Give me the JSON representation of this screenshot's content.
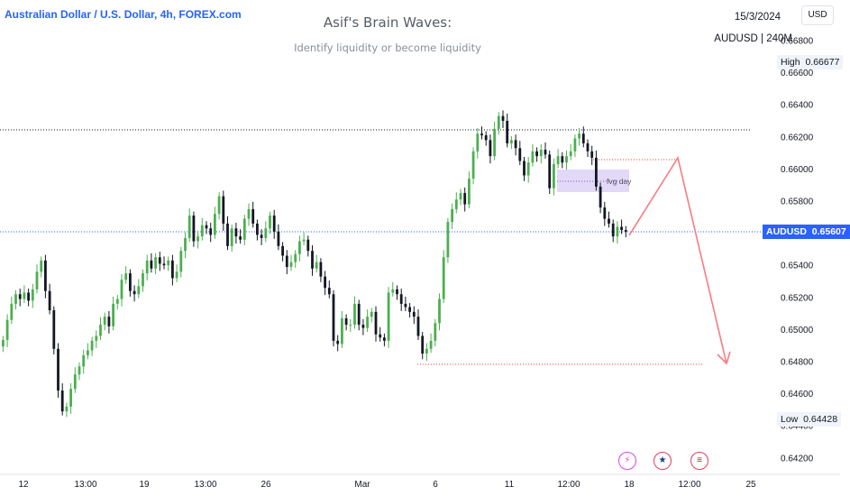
{
  "header": {
    "symbol_title": "Australian Dollar / U.S. Dollar, 4h, FOREX.com",
    "date": "15/3/2024",
    "symbol_interval": "AUDUSD | 240M",
    "currency": "USD"
  },
  "watermark": {
    "title": "Asif's Brain Waves:",
    "subtitle": "Identify liquidity or become liquidity"
  },
  "price_tags": {
    "high_label": "High",
    "high_value": "0.66677",
    "low_label": "Low",
    "low_value": "0.64428",
    "current_label": "AUDUSD",
    "current_value": "0.65607"
  },
  "event_icons": [
    "lightning-icon",
    "au-flag-icon",
    "us-flag-icon"
  ],
  "colors": {
    "up": "#4caf50",
    "down": "#131722",
    "projection": "#f77c80",
    "dotted_level": "#131722",
    "current_line": "#2962ff",
    "fvg_box": "#ddd1f7",
    "currency": "#2962ff"
  },
  "chart_data": {
    "type": "candlestick",
    "title": "Asif's Brain Waves:",
    "subtitle": "Identify liquidity or become liquidity",
    "symbol": "AUDUSD",
    "timeframe": "4h",
    "y_ticks": [
      "0.66800",
      "0.66600",
      "0.66400",
      "0.66200",
      "0.66000",
      "0.65800",
      "0.65600",
      "0.65400",
      "0.65200",
      "0.65000",
      "0.64800",
      "0.64600",
      "0.64400",
      "0.64200"
    ],
    "x_ticks": [
      "12",
      "13:00",
      "19",
      "13:00",
      "26",
      "Mar",
      "6",
      "11",
      "12:00",
      "18",
      "12:00",
      "25"
    ],
    "ylim": [
      0.6412,
      0.6692
    ],
    "grid": false,
    "closes": [
      0.64935,
      0.6506,
      0.6516,
      0.6522,
      0.6519,
      0.6523,
      0.6518,
      0.6525,
      0.6536,
      0.6543,
      0.6524,
      0.6512,
      0.6488,
      0.6462,
      0.6449,
      0.6452,
      0.6463,
      0.6472,
      0.6477,
      0.6484,
      0.6487,
      0.6493,
      0.6496,
      0.6503,
      0.6508,
      0.6502,
      0.6516,
      0.6519,
      0.6531,
      0.6535,
      0.6524,
      0.6522,
      0.6527,
      0.6535,
      0.6543,
      0.6538,
      0.6545,
      0.6541,
      0.654,
      0.6543,
      0.6532,
      0.6536,
      0.6549,
      0.6557,
      0.6571,
      0.6555,
      0.6558,
      0.6565,
      0.6563,
      0.6559,
      0.6572,
      0.6583,
      0.6566,
      0.6552,
      0.6563,
      0.6558,
      0.6556,
      0.6569,
      0.6575,
      0.6566,
      0.6559,
      0.6557,
      0.6563,
      0.6571,
      0.6561,
      0.6552,
      0.6546,
      0.6539,
      0.6542,
      0.6547,
      0.6555,
      0.6556,
      0.6549,
      0.6538,
      0.6542,
      0.6533,
      0.6526,
      0.6522,
      0.6493,
      0.6491,
      0.6507,
      0.6503,
      0.6503,
      0.6516,
      0.6503,
      0.6501,
      0.6508,
      0.6511,
      0.6497,
      0.6495,
      0.6493,
      0.6523,
      0.6525,
      0.6522,
      0.6516,
      0.6514,
      0.6511,
      0.6508,
      0.6496,
      0.6485,
      0.6488,
      0.6493,
      0.6504,
      0.6519,
      0.6545,
      0.6567,
      0.6575,
      0.6581,
      0.6585,
      0.6578,
      0.6594,
      0.6611,
      0.6622,
      0.6621,
      0.6618,
      0.6608,
      0.6625,
      0.6633,
      0.663,
      0.6616,
      0.6618,
      0.6613,
      0.6605,
      0.6596,
      0.6604,
      0.6611,
      0.6608,
      0.6612,
      0.6609,
      0.6588,
      0.6603,
      0.6608,
      0.6604,
      0.6608,
      0.6611,
      0.6619,
      0.6622,
      0.6616,
      0.6611,
      0.6607,
      0.6589,
      0.6576,
      0.6569,
      0.6566,
      0.6558,
      0.6564,
      0.6562,
      0.6561
    ]
  }
}
